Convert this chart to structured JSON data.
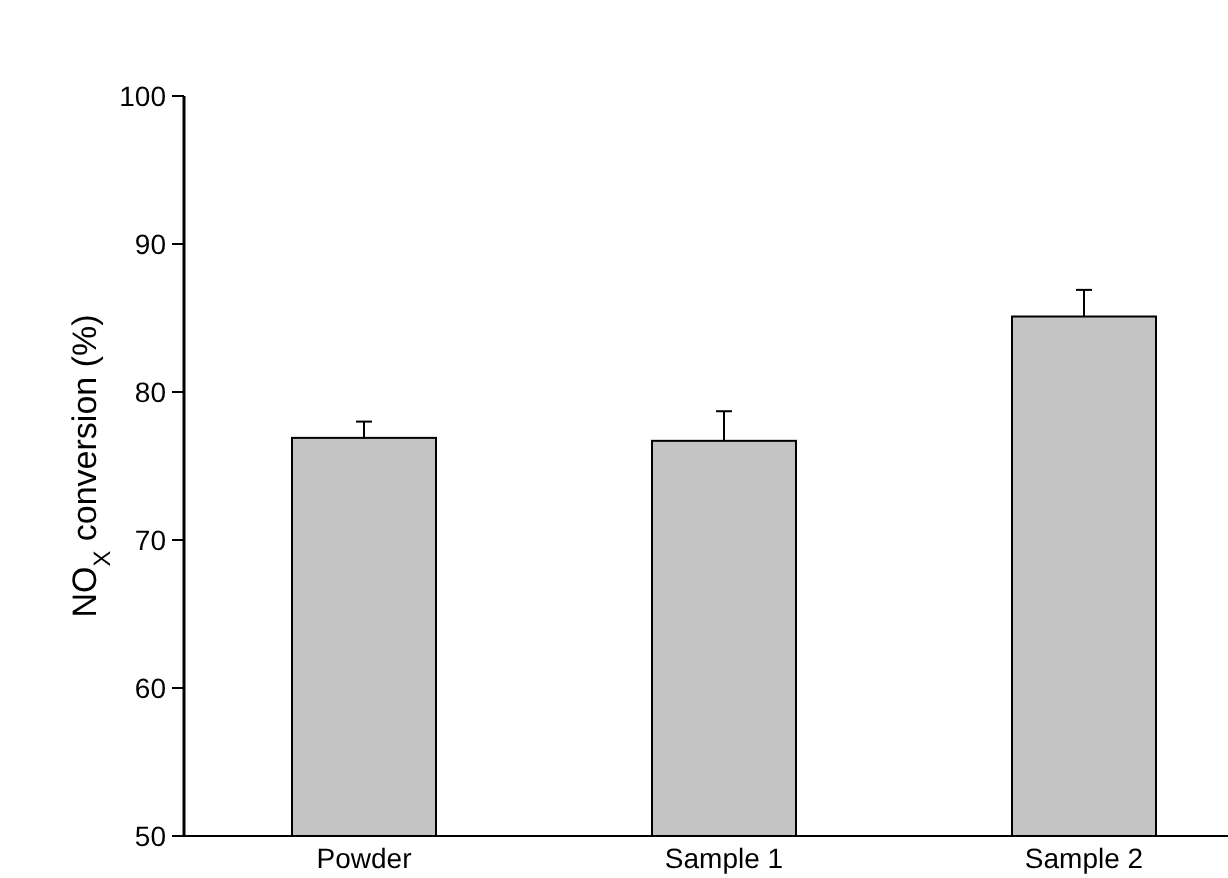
{
  "chart_data": {
    "type": "bar",
    "ylabel": "NO$_{X}$ conversion (%)",
    "categories": [
      "Powder",
      "Sample 1",
      "Sample 2"
    ],
    "values": [
      76.9,
      76.7,
      85.1
    ],
    "errors": [
      [
        76.9,
        78.0
      ],
      [
        76.7,
        78.7
      ],
      [
        85.1,
        86.9
      ]
    ],
    "color": "#c3c4c3",
    "ylim": [
      50,
      100
    ],
    "yticks": [
      50,
      60,
      70,
      80,
      90,
      100
    ],
    "grid": false
  }
}
